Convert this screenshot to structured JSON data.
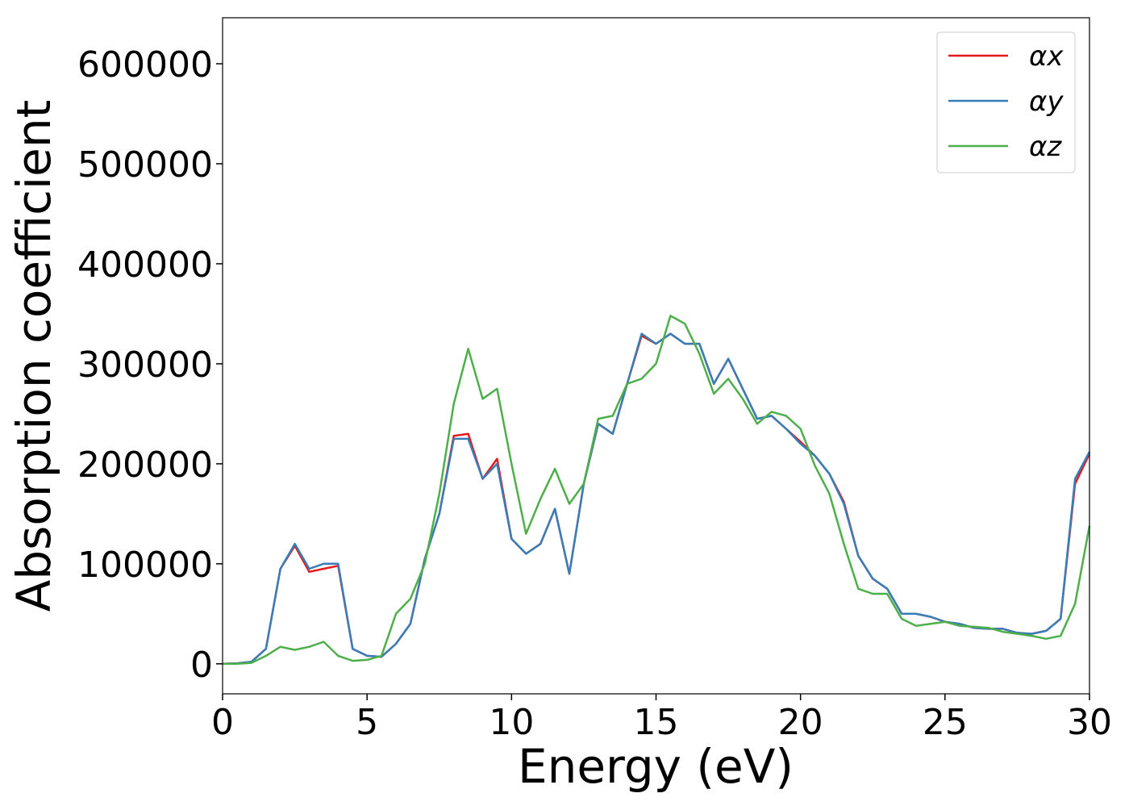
{
  "chart_data": {
    "type": "line",
    "xlabel": "Energy (eV)",
    "ylabel": "Absorption coefficient",
    "x": [
      0,
      0.5,
      1,
      1.5,
      2,
      2.5,
      3,
      3.5,
      4,
      4.5,
      5,
      5.5,
      6,
      6.5,
      7,
      7.5,
      8,
      8.5,
      9,
      9.5,
      10,
      10.5,
      11,
      11.5,
      12,
      12.5,
      13,
      13.5,
      14,
      14.5,
      15,
      15.5,
      16,
      16.5,
      17,
      17.5,
      18,
      18.5,
      19,
      19.5,
      20,
      20.5,
      21,
      21.5,
      22,
      22.5,
      23,
      23.5,
      24,
      24.5,
      25,
      25.5,
      26,
      26.5,
      27,
      27.5,
      28,
      28.5,
      29,
      29.5,
      30
    ],
    "series": [
      {
        "name": "αx",
        "color": "#e41a1c",
        "values": [
          0,
          500,
          2000,
          15000,
          95000,
          118000,
          92000,
          95000,
          98000,
          15000,
          8000,
          7000,
          20000,
          40000,
          105000,
          150000,
          228000,
          230000,
          185000,
          205000,
          125000,
          110000,
          120000,
          155000,
          90000,
          180000,
          240000,
          230000,
          280000,
          328000,
          320000,
          330000,
          320000,
          320000,
          280000,
          305000,
          275000,
          245000,
          248000,
          235000,
          222000,
          208000,
          190000,
          162000,
          108000,
          85000,
          75000,
          50000,
          50000,
          47000,
          42000,
          40000,
          36000,
          35000,
          35000,
          31000,
          30000,
          33000,
          45000,
          180000,
          210000
        ]
      },
      {
        "name": "αy",
        "color": "#377eb8",
        "values": [
          0,
          500,
          2000,
          15000,
          95000,
          120000,
          95000,
          100000,
          100000,
          15000,
          8000,
          7000,
          20000,
          40000,
          105000,
          150000,
          225000,
          225000,
          185000,
          200000,
          125000,
          110000,
          120000,
          155000,
          90000,
          180000,
          240000,
          230000,
          280000,
          330000,
          320000,
          330000,
          320000,
          320000,
          280000,
          305000,
          275000,
          245000,
          248000,
          235000,
          220000,
          208000,
          190000,
          160000,
          108000,
          85000,
          75000,
          50000,
          50000,
          47000,
          42000,
          40000,
          36000,
          35000,
          35000,
          31000,
          30000,
          33000,
          45000,
          185000,
          212000
        ]
      },
      {
        "name": "αz",
        "color": "#4daf4a",
        "values": [
          0,
          0,
          1000,
          8000,
          17000,
          14000,
          17000,
          22000,
          8000,
          3000,
          4000,
          8000,
          50000,
          65000,
          100000,
          170000,
          260000,
          315000,
          265000,
          275000,
          200000,
          130000,
          165000,
          195000,
          160000,
          180000,
          245000,
          248000,
          280000,
          285000,
          300000,
          348000,
          340000,
          310000,
          270000,
          285000,
          265000,
          240000,
          252000,
          248000,
          235000,
          198000,
          170000,
          120000,
          75000,
          70000,
          70000,
          45000,
          38000,
          40000,
          42000,
          38000,
          37000,
          36000,
          32000,
          30000,
          28000,
          25000,
          28000,
          60000,
          138000
        ]
      }
    ],
    "xlim": [
      0,
      30
    ],
    "xticks": [
      0,
      5,
      10,
      15,
      20,
      25,
      30
    ],
    "ylim": [
      -30000,
      646000
    ],
    "yticks": [
      0,
      100000,
      200000,
      300000,
      400000,
      500000,
      600000
    ],
    "legend": "upper right"
  }
}
